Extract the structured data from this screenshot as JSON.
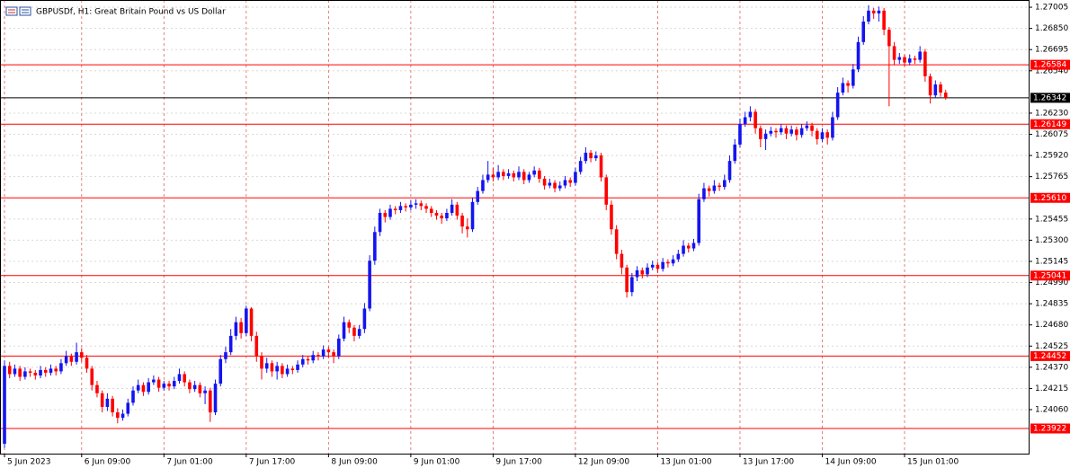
{
  "chart_data": {
    "type": "candlestick",
    "title": "GBPUSDf, H1:  Great Britain Pound vs US Dollar",
    "categories": [
      "5 Jun 2023",
      null,
      null,
      null,
      null,
      null,
      null,
      null,
      null,
      null,
      null,
      null,
      null,
      null,
      null,
      "6 Jun 09:00",
      null,
      null,
      null,
      null,
      null,
      null,
      null,
      null,
      null,
      null,
      null,
      null,
      null,
      null,
      null,
      "7 Jun 01:00",
      null,
      null,
      null,
      null,
      null,
      null,
      null,
      null,
      null,
      null,
      null,
      null,
      null,
      null,
      null,
      "7 Jun 17:00",
      null,
      null,
      null,
      null,
      null,
      null,
      null,
      null,
      null,
      null,
      null,
      null,
      null,
      null,
      null,
      "8 Jun 09:00",
      null,
      null,
      null,
      null,
      null,
      null,
      null,
      null,
      null,
      null,
      null,
      null,
      null,
      null,
      null,
      "9 Jun 01:00",
      null,
      null,
      null,
      null,
      null,
      null,
      null,
      null,
      null,
      null,
      null,
      null,
      null,
      null,
      null,
      "9 Jun 17:00",
      null,
      null,
      null,
      null,
      null,
      null,
      null,
      null,
      null,
      null,
      null,
      null,
      null,
      null,
      null,
      "12 Jun 09:00",
      null,
      null,
      null,
      null,
      null,
      null,
      null,
      null,
      null,
      null,
      null,
      null,
      null,
      null,
      null,
      "13 Jun 01:00",
      null,
      null,
      null,
      null,
      null,
      null,
      null,
      null,
      null,
      null,
      null,
      null,
      null,
      null,
      null,
      "13 Jun 17:00",
      null,
      null,
      null,
      null,
      null,
      null,
      null,
      null,
      null,
      null,
      null,
      null,
      null,
      null,
      null,
      "14 Jun 09:00",
      null,
      null,
      null,
      null,
      null,
      null,
      null,
      null,
      null,
      null,
      null,
      null,
      null,
      null,
      null,
      "15 Jun 01:00",
      null,
      null,
      null,
      null,
      null,
      null,
      null,
      null
    ],
    "candles": [
      [
        1.2381,
        1.2442,
        1.2378,
        1.2438
      ],
      [
        1.2438,
        1.2441,
        1.2429,
        1.2432
      ],
      [
        1.2432,
        1.2439,
        1.243,
        1.2436
      ],
      [
        1.2436,
        1.2438,
        1.2427,
        1.243
      ],
      [
        1.243,
        1.2437,
        1.2428,
        1.2434
      ],
      [
        1.2434,
        1.2436,
        1.243,
        1.2433
      ],
      [
        1.2433,
        1.2435,
        1.2428,
        1.2431
      ],
      [
        1.2431,
        1.2438,
        1.2429,
        1.2435
      ],
      [
        1.2435,
        1.2437,
        1.243,
        1.2433
      ],
      [
        1.2433,
        1.2439,
        1.2431,
        1.2436
      ],
      [
        1.2436,
        1.2438,
        1.2431,
        1.2434
      ],
      [
        1.2434,
        1.2443,
        1.2432,
        1.244
      ],
      [
        1.244,
        1.2449,
        1.2438,
        1.2445
      ],
      [
        1.2445,
        1.2447,
        1.2438,
        1.2441
      ],
      [
        1.2441,
        1.2455,
        1.2439,
        1.2448
      ],
      [
        1.2448,
        1.2451,
        1.2441,
        1.2444
      ],
      [
        1.2444,
        1.2446,
        1.2433,
        1.2436
      ],
      [
        1.2436,
        1.2438,
        1.242,
        1.2424
      ],
      [
        1.2424,
        1.2427,
        1.2415,
        1.2418
      ],
      [
        1.2418,
        1.242,
        1.2404,
        1.2408
      ],
      [
        1.2408,
        1.2418,
        1.2405,
        1.2414
      ],
      [
        1.2414,
        1.2416,
        1.2401,
        1.2404
      ],
      [
        1.2404,
        1.2407,
        1.2396,
        1.24
      ],
      [
        1.24,
        1.2406,
        1.2398,
        1.2403
      ],
      [
        1.2403,
        1.2414,
        1.2401,
        1.2411
      ],
      [
        1.2411,
        1.2423,
        1.2409,
        1.242
      ],
      [
        1.242,
        1.2428,
        1.2418,
        1.2424
      ],
      [
        1.2424,
        1.2426,
        1.2416,
        1.2419
      ],
      [
        1.2419,
        1.2429,
        1.2417,
        1.2426
      ],
      [
        1.2426,
        1.2431,
        1.2424,
        1.2428
      ],
      [
        1.2428,
        1.243,
        1.2419,
        1.2422
      ],
      [
        1.2422,
        1.2427,
        1.242,
        1.2425
      ],
      [
        1.2425,
        1.2427,
        1.242,
        1.2423
      ],
      [
        1.2423,
        1.243,
        1.2421,
        1.2427
      ],
      [
        1.2427,
        1.2436,
        1.2425,
        1.2432
      ],
      [
        1.2432,
        1.2434,
        1.2423,
        1.2426
      ],
      [
        1.2426,
        1.2428,
        1.2418,
        1.2421
      ],
      [
        1.2421,
        1.2427,
        1.2419,
        1.2424
      ],
      [
        1.2424,
        1.2426,
        1.2415,
        1.2418
      ],
      [
        1.2418,
        1.2423,
        1.241,
        1.242
      ],
      [
        1.242,
        1.2422,
        1.2397,
        1.2404
      ],
      [
        1.2404,
        1.2428,
        1.2402,
        1.2425
      ],
      [
        1.2425,
        1.2446,
        1.2423,
        1.2443
      ],
      [
        1.2443,
        1.2452,
        1.244,
        1.2448
      ],
      [
        1.2448,
        1.2465,
        1.2446,
        1.246
      ],
      [
        1.246,
        1.2474,
        1.2457,
        1.247
      ],
      [
        1.247,
        1.2473,
        1.2458,
        1.2462
      ],
      [
        1.2462,
        1.2482,
        1.246,
        1.248
      ],
      [
        1.248,
        1.2481,
        1.2456,
        1.246
      ],
      [
        1.246,
        1.2463,
        1.2441,
        1.2445
      ],
      [
        1.2445,
        1.2448,
        1.2428,
        1.2436
      ],
      [
        1.2436,
        1.2444,
        1.2433,
        1.244
      ],
      [
        1.244,
        1.2442,
        1.243,
        1.2434
      ],
      [
        1.2434,
        1.2441,
        1.2428,
        1.2438
      ],
      [
        1.2438,
        1.244,
        1.2429,
        1.2432
      ],
      [
        1.2432,
        1.2439,
        1.243,
        1.2436
      ],
      [
        1.2436,
        1.2438,
        1.2432,
        1.2435
      ],
      [
        1.2435,
        1.2442,
        1.2433,
        1.2439
      ],
      [
        1.2439,
        1.2446,
        1.2437,
        1.2443
      ],
      [
        1.2443,
        1.2445,
        1.2439,
        1.2442
      ],
      [
        1.2442,
        1.2449,
        1.244,
        1.2446
      ],
      [
        1.2446,
        1.2448,
        1.2442,
        1.2445
      ],
      [
        1.2445,
        1.2453,
        1.2443,
        1.245
      ],
      [
        1.245,
        1.2452,
        1.2444,
        1.2448
      ],
      [
        1.2448,
        1.245,
        1.244,
        1.2445
      ],
      [
        1.2445,
        1.2461,
        1.2443,
        1.2458
      ],
      [
        1.2458,
        1.2474,
        1.2456,
        1.247
      ],
      [
        1.247,
        1.2472,
        1.2462,
        1.2466
      ],
      [
        1.2466,
        1.2468,
        1.2456,
        1.246
      ],
      [
        1.246,
        1.2468,
        1.2458,
        1.2465
      ],
      [
        1.2465,
        1.2484,
        1.2462,
        1.248
      ],
      [
        1.248,
        1.2519,
        1.2478,
        1.2515
      ],
      [
        1.2515,
        1.254,
        1.2512,
        1.2536
      ],
      [
        1.2536,
        1.2553,
        1.2533,
        1.255
      ],
      [
        1.255,
        1.2552,
        1.2543,
        1.2547
      ],
      [
        1.2547,
        1.2556,
        1.2545,
        1.2553
      ],
      [
        1.2553,
        1.2555,
        1.2549,
        1.2552
      ],
      [
        1.2552,
        1.2558,
        1.255,
        1.2555
      ],
      [
        1.2555,
        1.2557,
        1.2551,
        1.2554
      ],
      [
        1.2554,
        1.2559,
        1.2552,
        1.2556
      ],
      [
        1.2556,
        1.256,
        1.2553,
        1.2557
      ],
      [
        1.2557,
        1.2559,
        1.2552,
        1.2555
      ],
      [
        1.2555,
        1.2557,
        1.255,
        1.2553
      ],
      [
        1.2553,
        1.2555,
        1.2547,
        1.255
      ],
      [
        1.255,
        1.2552,
        1.2545,
        1.2548
      ],
      [
        1.2548,
        1.255,
        1.2542,
        1.2546
      ],
      [
        1.2546,
        1.2553,
        1.2544,
        1.255
      ],
      [
        1.255,
        1.256,
        1.2548,
        1.2556
      ],
      [
        1.2556,
        1.2558,
        1.2545,
        1.2548
      ],
      [
        1.2548,
        1.255,
        1.2535,
        1.254
      ],
      [
        1.254,
        1.2546,
        1.2532,
        1.2538
      ],
      [
        1.2538,
        1.2561,
        1.2536,
        1.2558
      ],
      [
        1.2558,
        1.2569,
        1.2556,
        1.2566
      ],
      [
        1.2566,
        1.2578,
        1.2564,
        1.2574
      ],
      [
        1.2574,
        1.2588,
        1.2572,
        1.2578
      ],
      [
        1.2578,
        1.2583,
        1.2573,
        1.2576
      ],
      [
        1.2576,
        1.2585,
        1.2574,
        1.258
      ],
      [
        1.258,
        1.2582,
        1.2574,
        1.2577
      ],
      [
        1.2577,
        1.2582,
        1.2575,
        1.2579
      ],
      [
        1.2579,
        1.2581,
        1.2573,
        1.2576
      ],
      [
        1.2576,
        1.2584,
        1.2574,
        1.258
      ],
      [
        1.258,
        1.2582,
        1.2571,
        1.2574
      ],
      [
        1.2574,
        1.258,
        1.2572,
        1.2578
      ],
      [
        1.2578,
        1.2584,
        1.2576,
        1.2581
      ],
      [
        1.2581,
        1.2583,
        1.2572,
        1.2575
      ],
      [
        1.2575,
        1.2577,
        1.2567,
        1.257
      ],
      [
        1.257,
        1.2575,
        1.2568,
        1.2572
      ],
      [
        1.2572,
        1.2574,
        1.2565,
        1.2568
      ],
      [
        1.2568,
        1.2573,
        1.2566,
        1.257
      ],
      [
        1.257,
        1.2577,
        1.2568,
        1.2574
      ],
      [
        1.2574,
        1.2576,
        1.2569,
        1.2572
      ],
      [
        1.2572,
        1.2583,
        1.257,
        1.258
      ],
      [
        1.258,
        1.2591,
        1.2578,
        1.2588
      ],
      [
        1.2588,
        1.2598,
        1.2586,
        1.2594
      ],
      [
        1.2594,
        1.2596,
        1.2587,
        1.259
      ],
      [
        1.259,
        1.2595,
        1.2588,
        1.2592
      ],
      [
        1.2592,
        1.2594,
        1.2573,
        1.2576
      ],
      [
        1.2576,
        1.2578,
        1.2552,
        1.2556
      ],
      [
        1.2556,
        1.2559,
        1.2534,
        1.2538
      ],
      [
        1.2538,
        1.2541,
        1.2516,
        1.252
      ],
      [
        1.252,
        1.2523,
        1.2505,
        1.251
      ],
      [
        1.251,
        1.2512,
        1.2488,
        1.2492
      ],
      [
        1.2492,
        1.2506,
        1.2489,
        1.2503
      ],
      [
        1.2503,
        1.2511,
        1.25,
        1.2508
      ],
      [
        1.2508,
        1.251,
        1.2502,
        1.2505
      ],
      [
        1.2505,
        1.2513,
        1.2503,
        1.251
      ],
      [
        1.251,
        1.2515,
        1.2508,
        1.2512
      ],
      [
        1.2512,
        1.2514,
        1.2506,
        1.2509
      ],
      [
        1.2509,
        1.2517,
        1.2507,
        1.2514
      ],
      [
        1.2514,
        1.2516,
        1.251,
        1.2513
      ],
      [
        1.2513,
        1.2519,
        1.2511,
        1.2516
      ],
      [
        1.2516,
        1.2523,
        1.2514,
        1.252
      ],
      [
        1.252,
        1.253,
        1.2518,
        1.2526
      ],
      [
        1.2526,
        1.2528,
        1.2521,
        1.2524
      ],
      [
        1.2524,
        1.2531,
        1.2522,
        1.2528
      ],
      [
        1.2528,
        1.2564,
        1.2526,
        1.256
      ],
      [
        1.256,
        1.2572,
        1.2558,
        1.2568
      ],
      [
        1.2568,
        1.257,
        1.2562,
        1.2566
      ],
      [
        1.2566,
        1.2574,
        1.2564,
        1.257
      ],
      [
        1.257,
        1.2572,
        1.2566,
        1.2569
      ],
      [
        1.2569,
        1.2578,
        1.2567,
        1.2574
      ],
      [
        1.2574,
        1.2592,
        1.2572,
        1.2588
      ],
      [
        1.2588,
        1.2604,
        1.2586,
        1.26
      ],
      [
        1.26,
        1.2619,
        1.2598,
        1.2615
      ],
      [
        1.2615,
        1.2624,
        1.2613,
        1.262
      ],
      [
        1.262,
        1.2628,
        1.2617,
        1.2624
      ],
      [
        1.2624,
        1.2626,
        1.2608,
        1.2612
      ],
      [
        1.2612,
        1.2614,
        1.2598,
        1.2604
      ],
      [
        1.2604,
        1.2611,
        1.2596,
        1.2608
      ],
      [
        1.2608,
        1.2613,
        1.2606,
        1.261
      ],
      [
        1.261,
        1.2612,
        1.2605,
        1.2609
      ],
      [
        1.2609,
        1.2615,
        1.2607,
        1.2612
      ],
      [
        1.2612,
        1.2614,
        1.2604,
        1.2608
      ],
      [
        1.2608,
        1.2614,
        1.2606,
        1.2611
      ],
      [
        1.2611,
        1.2613,
        1.2603,
        1.2607
      ],
      [
        1.2607,
        1.2615,
        1.2605,
        1.2612
      ],
      [
        1.2612,
        1.2617,
        1.261,
        1.2614
      ],
      [
        1.2614,
        1.2616,
        1.2606,
        1.261
      ],
      [
        1.261,
        1.2612,
        1.26,
        1.2604
      ],
      [
        1.2604,
        1.2612,
        1.2602,
        1.2609
      ],
      [
        1.2609,
        1.2611,
        1.26,
        1.2605
      ],
      [
        1.2605,
        1.2624,
        1.2603,
        1.262
      ],
      [
        1.262,
        1.2642,
        1.2618,
        1.2638
      ],
      [
        1.2638,
        1.2649,
        1.2636,
        1.2645
      ],
      [
        1.2645,
        1.2647,
        1.2638,
        1.2643
      ],
      [
        1.2643,
        1.2659,
        1.2641,
        1.2655
      ],
      [
        1.2655,
        1.2679,
        1.2653,
        1.2675
      ],
      [
        1.2675,
        1.2694,
        1.2673,
        1.269
      ],
      [
        1.269,
        1.2702,
        1.2688,
        1.2698
      ],
      [
        1.2698,
        1.27,
        1.2692,
        1.2696
      ],
      [
        1.2696,
        1.2701,
        1.269,
        1.2698
      ],
      [
        1.2698,
        1.27,
        1.268,
        1.2684
      ],
      [
        1.2684,
        1.2686,
        1.2628,
        1.2672
      ],
      [
        1.2672,
        1.2675,
        1.2658,
        1.2662
      ],
      [
        1.2662,
        1.2667,
        1.2659,
        1.2664
      ],
      [
        1.2664,
        1.2666,
        1.2657,
        1.266
      ],
      [
        1.266,
        1.2666,
        1.2658,
        1.2663
      ],
      [
        1.2663,
        1.2665,
        1.2659,
        1.2662
      ],
      [
        1.2662,
        1.2672,
        1.266,
        1.2668
      ],
      [
        1.2668,
        1.267,
        1.2646,
        1.265
      ],
      [
        1.265,
        1.2652,
        1.263,
        1.2636
      ],
      [
        1.2636,
        1.2647,
        1.2634,
        1.2644
      ],
      [
        1.2644,
        1.2646,
        1.2635,
        1.2638
      ],
      [
        1.2638,
        1.264,
        1.26328,
        1.26342
      ]
    ],
    "up_color": "#1414f0",
    "down_color": "#ff0000",
    "ylim": [
      1.23738,
      1.27058
    ],
    "yticks": [
      {
        "value": 1.27005,
        "label": "1.27005"
      },
      {
        "value": 1.2685,
        "label": "1.26850"
      },
      {
        "value": 1.26695,
        "label": "1.26695"
      },
      {
        "value": 1.2654,
        "label": "1.26540"
      },
      {
        "value": 1.2623,
        "label": "1.26230"
      },
      {
        "value": 1.26075,
        "label": "1.26075"
      },
      {
        "value": 1.2592,
        "label": "1.25920"
      },
      {
        "value": 1.25765,
        "label": "1.25765"
      },
      {
        "value": 1.25455,
        "label": "1.25455"
      },
      {
        "value": 1.253,
        "label": "1.25300"
      },
      {
        "value": 1.25145,
        "label": "1.25145"
      },
      {
        "value": 1.2499,
        "label": "1.24990"
      },
      {
        "value": 1.24835,
        "label": "1.24835"
      },
      {
        "value": 1.2468,
        "label": "1.24680"
      },
      {
        "value": 1.24525,
        "label": "1.24525"
      },
      {
        "value": 1.2437,
        "label": "1.24370"
      },
      {
        "value": 1.24215,
        "label": "1.24215"
      },
      {
        "value": 1.2406,
        "label": "1.24060"
      }
    ],
    "levels": [
      {
        "value": 1.26584,
        "label": "1.26584"
      },
      {
        "value": 1.26149,
        "label": "1.26149"
      },
      {
        "value": 1.2561,
        "label": "1.25610"
      },
      {
        "value": 1.25041,
        "label": "1.25041"
      },
      {
        "value": 1.24452,
        "label": "1.24452"
      },
      {
        "value": 1.23922,
        "label": "1.23922"
      }
    ],
    "level_color": "#ff0000",
    "current_price": {
      "value": 1.26342,
      "label": "1.26342"
    },
    "grid": true
  }
}
